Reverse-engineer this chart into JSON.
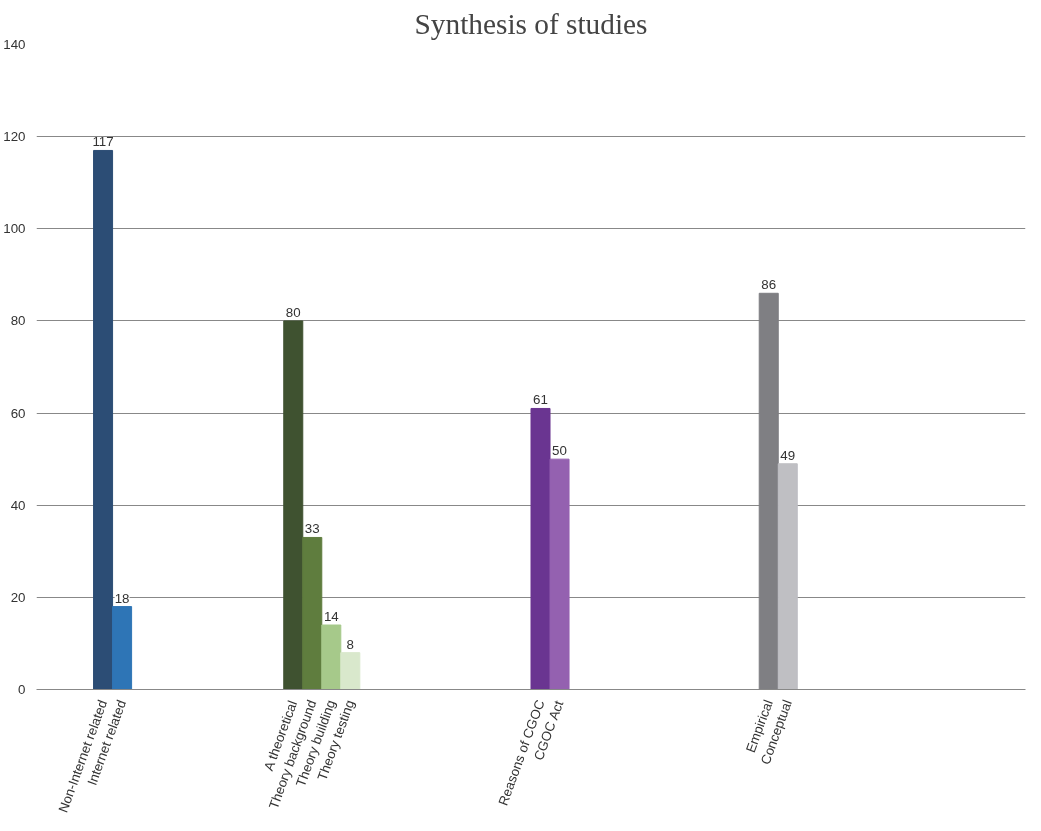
{
  "chart_data": {
    "type": "bar",
    "title": "Synthesis of studies",
    "categories": [
      null,
      null,
      null,
      "Non-Internet related",
      "Internet related",
      null,
      null,
      null,
      null,
      null,
      null,
      null,
      null,
      "A theoretical",
      "Theory background",
      "Theory building",
      "Theory testing",
      null,
      null,
      null,
      null,
      null,
      null,
      null,
      null,
      null,
      "Reasons of CGOC",
      "CGOC Act",
      null,
      null,
      null,
      null,
      null,
      null,
      null,
      null,
      null,
      null,
      "Empirical",
      "Conceptual",
      null,
      null,
      null,
      null,
      null,
      null,
      null,
      null,
      null,
      null,
      null,
      null
    ],
    "values": [
      null,
      null,
      null,
      117,
      18,
      null,
      null,
      null,
      null,
      null,
      null,
      null,
      null,
      80,
      33,
      14,
      8,
      null,
      null,
      null,
      null,
      null,
      null,
      null,
      null,
      null,
      61,
      50,
      null,
      null,
      null,
      null,
      null,
      null,
      null,
      null,
      null,
      null,
      86,
      49,
      null,
      null,
      null,
      null,
      null,
      null,
      null,
      null,
      null,
      null,
      null,
      null
    ],
    "colors": [
      null,
      null,
      null,
      "#2c4d75",
      "#2e75b6",
      null,
      null,
      null,
      null,
      null,
      null,
      null,
      null,
      "#3f5230",
      "#5f7d3e",
      "#a6c98a",
      "#d9e8cc",
      null,
      null,
      null,
      null,
      null,
      null,
      null,
      null,
      null,
      "#6a3591",
      "#9461b0",
      null,
      null,
      null,
      null,
      null,
      null,
      null,
      null,
      null,
      null,
      "#7f7f83",
      "#bfbfc3",
      null,
      null,
      null,
      null,
      null,
      null,
      null,
      null,
      null,
      null,
      null,
      null
    ],
    "ylim": [
      0,
      140
    ],
    "yticks": [
      0,
      20,
      40,
      60,
      80,
      100,
      120,
      140
    ],
    "grid": "y",
    "data_labels": true
  }
}
